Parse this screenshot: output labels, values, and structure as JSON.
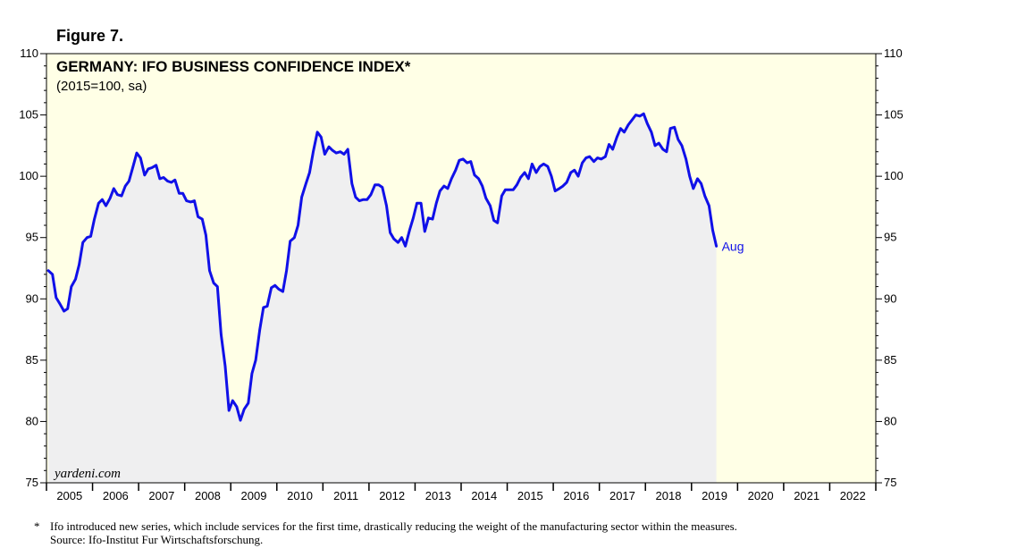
{
  "figure_label": "Figure 7.",
  "footnote": {
    "marker": "*",
    "text": "Ifo introduced new series, which include services for the first time, drastically reducing the weight of the manufacturing sector within the measures.",
    "source": "Source: Ifo-Institut Fur Wirtschaftsforschung."
  },
  "colors": {
    "plot_bg": "#ffffe6",
    "area_fill": "#efeff0",
    "line": "#1010e8",
    "label": "#1010e8"
  },
  "chart_data": {
    "type": "line",
    "title": "GERMANY: IFO BUSINESS CONFIDENCE INDEX*",
    "subtitle": "(2015=100, sa)",
    "watermark": "yardeni.com",
    "end_label": "Aug",
    "ylim": [
      75,
      110
    ],
    "xlim": [
      2005.0,
      2023.0
    ],
    "y_ticks": [
      "75",
      "80",
      "85",
      "90",
      "95",
      "100",
      "105",
      "110"
    ],
    "x_tick_labels": [
      "2005",
      "2006",
      "2007",
      "2008",
      "2009",
      "2010",
      "2011",
      "2012",
      "2013",
      "2014",
      "2015",
      "2016",
      "2017",
      "2018",
      "2019",
      "2020",
      "2021",
      "2022"
    ],
    "series": [
      {
        "name": "Ifo Business Confidence Index",
        "points": [
          [
            2005.04,
            92.3
          ],
          [
            2005.13,
            92.0
          ],
          [
            2005.21,
            90.1
          ],
          [
            2005.29,
            89.6
          ],
          [
            2005.38,
            89.0
          ],
          [
            2005.46,
            89.2
          ],
          [
            2005.54,
            91.0
          ],
          [
            2005.63,
            91.6
          ],
          [
            2005.71,
            92.8
          ],
          [
            2005.79,
            94.6
          ],
          [
            2005.88,
            95.0
          ],
          [
            2005.96,
            95.1
          ],
          [
            2006.04,
            96.5
          ],
          [
            2006.13,
            97.8
          ],
          [
            2006.21,
            98.1
          ],
          [
            2006.29,
            97.6
          ],
          [
            2006.38,
            98.2
          ],
          [
            2006.46,
            99.0
          ],
          [
            2006.54,
            98.5
          ],
          [
            2006.63,
            98.4
          ],
          [
            2006.71,
            99.2
          ],
          [
            2006.79,
            99.6
          ],
          [
            2006.88,
            100.8
          ],
          [
            2006.96,
            101.9
          ],
          [
            2007.04,
            101.5
          ],
          [
            2007.13,
            100.1
          ],
          [
            2007.21,
            100.6
          ],
          [
            2007.29,
            100.7
          ],
          [
            2007.38,
            100.9
          ],
          [
            2007.46,
            99.8
          ],
          [
            2007.54,
            99.9
          ],
          [
            2007.63,
            99.6
          ],
          [
            2007.71,
            99.5
          ],
          [
            2007.79,
            99.7
          ],
          [
            2007.88,
            98.6
          ],
          [
            2007.96,
            98.6
          ],
          [
            2008.04,
            98.0
          ],
          [
            2008.13,
            97.9
          ],
          [
            2008.21,
            98.0
          ],
          [
            2008.29,
            96.7
          ],
          [
            2008.38,
            96.5
          ],
          [
            2008.46,
            95.2
          ],
          [
            2008.54,
            92.3
          ],
          [
            2008.63,
            91.3
          ],
          [
            2008.71,
            91.0
          ],
          [
            2008.79,
            87.1
          ],
          [
            2008.88,
            84.5
          ],
          [
            2008.96,
            80.9
          ],
          [
            2009.04,
            81.7
          ],
          [
            2009.13,
            81.2
          ],
          [
            2009.21,
            80.1
          ],
          [
            2009.29,
            81.0
          ],
          [
            2009.38,
            81.5
          ],
          [
            2009.46,
            83.9
          ],
          [
            2009.54,
            85.0
          ],
          [
            2009.63,
            87.5
          ],
          [
            2009.71,
            89.3
          ],
          [
            2009.79,
            89.4
          ],
          [
            2009.88,
            90.9
          ],
          [
            2009.96,
            91.1
          ],
          [
            2010.04,
            90.8
          ],
          [
            2010.13,
            90.6
          ],
          [
            2010.21,
            92.3
          ],
          [
            2010.29,
            94.7
          ],
          [
            2010.38,
            95.0
          ],
          [
            2010.46,
            96.0
          ],
          [
            2010.54,
            98.3
          ],
          [
            2010.63,
            99.4
          ],
          [
            2010.71,
            100.3
          ],
          [
            2010.79,
            102.0
          ],
          [
            2010.88,
            103.6
          ],
          [
            2010.96,
            103.2
          ],
          [
            2011.04,
            101.8
          ],
          [
            2011.13,
            102.4
          ],
          [
            2011.21,
            102.1
          ],
          [
            2011.29,
            101.9
          ],
          [
            2011.38,
            102.0
          ],
          [
            2011.46,
            101.8
          ],
          [
            2011.54,
            102.2
          ],
          [
            2011.63,
            99.4
          ],
          [
            2011.71,
            98.3
          ],
          [
            2011.79,
            98.0
          ],
          [
            2011.88,
            98.1
          ],
          [
            2011.96,
            98.1
          ],
          [
            2012.04,
            98.5
          ],
          [
            2012.13,
            99.3
          ],
          [
            2012.21,
            99.3
          ],
          [
            2012.29,
            99.1
          ],
          [
            2012.38,
            97.6
          ],
          [
            2012.46,
            95.4
          ],
          [
            2012.54,
            94.9
          ],
          [
            2012.63,
            94.6
          ],
          [
            2012.71,
            95.0
          ],
          [
            2012.79,
            94.3
          ],
          [
            2012.88,
            95.6
          ],
          [
            2012.96,
            96.6
          ],
          [
            2013.04,
            97.8
          ],
          [
            2013.13,
            97.8
          ],
          [
            2013.21,
            95.5
          ],
          [
            2013.29,
            96.6
          ],
          [
            2013.38,
            96.5
          ],
          [
            2013.46,
            97.8
          ],
          [
            2013.54,
            98.8
          ],
          [
            2013.63,
            99.2
          ],
          [
            2013.71,
            99.0
          ],
          [
            2013.79,
            99.8
          ],
          [
            2013.88,
            100.5
          ],
          [
            2013.96,
            101.3
          ],
          [
            2014.04,
            101.4
          ],
          [
            2014.13,
            101.1
          ],
          [
            2014.21,
            101.2
          ],
          [
            2014.29,
            100.1
          ],
          [
            2014.38,
            99.8
          ],
          [
            2014.46,
            99.2
          ],
          [
            2014.54,
            98.2
          ],
          [
            2014.63,
            97.6
          ],
          [
            2014.71,
            96.4
          ],
          [
            2014.79,
            96.2
          ],
          [
            2014.88,
            98.4
          ],
          [
            2014.96,
            98.9
          ],
          [
            2015.04,
            98.9
          ],
          [
            2015.13,
            98.9
          ],
          [
            2015.21,
            99.3
          ],
          [
            2015.29,
            99.9
          ],
          [
            2015.38,
            100.3
          ],
          [
            2015.46,
            99.8
          ],
          [
            2015.54,
            101.0
          ],
          [
            2015.63,
            100.3
          ],
          [
            2015.71,
            100.8
          ],
          [
            2015.79,
            101.0
          ],
          [
            2015.88,
            100.8
          ],
          [
            2015.96,
            100.0
          ],
          [
            2016.04,
            98.8
          ],
          [
            2016.13,
            99.0
          ],
          [
            2016.21,
            99.2
          ],
          [
            2016.29,
            99.5
          ],
          [
            2016.38,
            100.3
          ],
          [
            2016.46,
            100.5
          ],
          [
            2016.54,
            100.0
          ],
          [
            2016.63,
            101.1
          ],
          [
            2016.71,
            101.5
          ],
          [
            2016.79,
            101.6
          ],
          [
            2016.88,
            101.2
          ],
          [
            2016.96,
            101.5
          ],
          [
            2017.04,
            101.4
          ],
          [
            2017.13,
            101.6
          ],
          [
            2017.21,
            102.6
          ],
          [
            2017.29,
            102.2
          ],
          [
            2017.38,
            103.2
          ],
          [
            2017.46,
            103.9
          ],
          [
            2017.54,
            103.6
          ],
          [
            2017.63,
            104.2
          ],
          [
            2017.71,
            104.6
          ],
          [
            2017.79,
            105.0
          ],
          [
            2017.88,
            104.9
          ],
          [
            2017.96,
            105.1
          ],
          [
            2018.04,
            104.3
          ],
          [
            2018.13,
            103.6
          ],
          [
            2018.21,
            102.5
          ],
          [
            2018.29,
            102.7
          ],
          [
            2018.38,
            102.2
          ],
          [
            2018.46,
            102.0
          ],
          [
            2018.54,
            103.9
          ],
          [
            2018.63,
            104.0
          ],
          [
            2018.71,
            103.0
          ],
          [
            2018.79,
            102.5
          ],
          [
            2018.88,
            101.4
          ],
          [
            2018.96,
            100.0
          ],
          [
            2019.04,
            99.0
          ],
          [
            2019.13,
            99.8
          ],
          [
            2019.21,
            99.4
          ],
          [
            2019.29,
            98.4
          ],
          [
            2019.38,
            97.6
          ],
          [
            2019.46,
            95.6
          ],
          [
            2019.54,
            94.3
          ]
        ]
      }
    ]
  }
}
